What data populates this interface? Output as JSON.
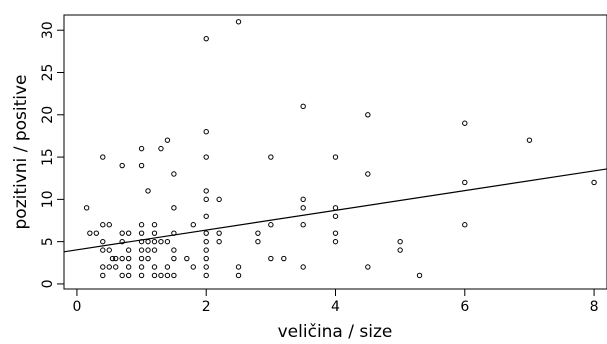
{
  "chart_data": {
    "type": "scatter",
    "title": "",
    "xlabel": "veličina / size",
    "ylabel": "pozitivni / positive",
    "xlim": [
      -0.2,
      8.2
    ],
    "ylim": [
      -0.6,
      31.8
    ],
    "xticks": [
      0,
      2,
      4,
      6,
      8
    ],
    "yticks": [
      0,
      5,
      10,
      15,
      20,
      25,
      30
    ],
    "grid": false,
    "legend": "none",
    "points": [
      {
        "x": 0.15,
        "y": 9
      },
      {
        "x": 0.2,
        "y": 6
      },
      {
        "x": 0.3,
        "y": 6
      },
      {
        "x": 0.4,
        "y": 15
      },
      {
        "x": 0.4,
        "y": 7
      },
      {
        "x": 0.4,
        "y": 5
      },
      {
        "x": 0.4,
        "y": 4
      },
      {
        "x": 0.4,
        "y": 2
      },
      {
        "x": 0.4,
        "y": 1
      },
      {
        "x": 0.5,
        "y": 7
      },
      {
        "x": 0.5,
        "y": 4
      },
      {
        "x": 0.5,
        "y": 2
      },
      {
        "x": 0.55,
        "y": 3
      },
      {
        "x": 0.6,
        "y": 3
      },
      {
        "x": 0.6,
        "y": 2
      },
      {
        "x": 0.7,
        "y": 14
      },
      {
        "x": 0.7,
        "y": 6
      },
      {
        "x": 0.7,
        "y": 5
      },
      {
        "x": 0.7,
        "y": 3
      },
      {
        "x": 0.7,
        "y": 1
      },
      {
        "x": 0.8,
        "y": 6
      },
      {
        "x": 0.8,
        "y": 4
      },
      {
        "x": 0.8,
        "y": 3
      },
      {
        "x": 0.8,
        "y": 2
      },
      {
        "x": 0.8,
        "y": 1
      },
      {
        "x": 1.0,
        "y": 16
      },
      {
        "x": 1.0,
        "y": 14
      },
      {
        "x": 1.0,
        "y": 7
      },
      {
        "x": 1.0,
        "y": 6
      },
      {
        "x": 1.0,
        "y": 5
      },
      {
        "x": 1.0,
        "y": 4
      },
      {
        "x": 1.0,
        "y": 3
      },
      {
        "x": 1.0,
        "y": 2
      },
      {
        "x": 1.0,
        "y": 1
      },
      {
        "x": 1.1,
        "y": 11
      },
      {
        "x": 1.1,
        "y": 5
      },
      {
        "x": 1.1,
        "y": 4
      },
      {
        "x": 1.1,
        "y": 3
      },
      {
        "x": 1.2,
        "y": 7
      },
      {
        "x": 1.2,
        "y": 6
      },
      {
        "x": 1.2,
        "y": 5
      },
      {
        "x": 1.2,
        "y": 4
      },
      {
        "x": 1.2,
        "y": 2
      },
      {
        "x": 1.2,
        "y": 1
      },
      {
        "x": 1.3,
        "y": 16
      },
      {
        "x": 1.3,
        "y": 5
      },
      {
        "x": 1.3,
        "y": 1
      },
      {
        "x": 1.4,
        "y": 17
      },
      {
        "x": 1.4,
        "y": 5
      },
      {
        "x": 1.4,
        "y": 2
      },
      {
        "x": 1.4,
        "y": 1
      },
      {
        "x": 1.5,
        "y": 13
      },
      {
        "x": 1.5,
        "y": 9
      },
      {
        "x": 1.5,
        "y": 6
      },
      {
        "x": 1.5,
        "y": 4
      },
      {
        "x": 1.5,
        "y": 3
      },
      {
        "x": 1.5,
        "y": 1
      },
      {
        "x": 1.7,
        "y": 3
      },
      {
        "x": 1.8,
        "y": 7
      },
      {
        "x": 1.8,
        "y": 2
      },
      {
        "x": 2.0,
        "y": 29
      },
      {
        "x": 2.0,
        "y": 18
      },
      {
        "x": 2.0,
        "y": 15
      },
      {
        "x": 2.0,
        "y": 11
      },
      {
        "x": 2.0,
        "y": 10
      },
      {
        "x": 2.0,
        "y": 8
      },
      {
        "x": 2.0,
        "y": 6
      },
      {
        "x": 2.0,
        "y": 5
      },
      {
        "x": 2.0,
        "y": 4
      },
      {
        "x": 2.0,
        "y": 3
      },
      {
        "x": 2.0,
        "y": 2
      },
      {
        "x": 2.0,
        "y": 1
      },
      {
        "x": 2.2,
        "y": 10
      },
      {
        "x": 2.2,
        "y": 6
      },
      {
        "x": 2.2,
        "y": 5
      },
      {
        "x": 2.5,
        "y": 31
      },
      {
        "x": 2.5,
        "y": 2
      },
      {
        "x": 2.5,
        "y": 1
      },
      {
        "x": 2.8,
        "y": 6
      },
      {
        "x": 2.8,
        "y": 5
      },
      {
        "x": 3.0,
        "y": 15
      },
      {
        "x": 3.0,
        "y": 7
      },
      {
        "x": 3.0,
        "y": 3
      },
      {
        "x": 3.2,
        "y": 3
      },
      {
        "x": 3.5,
        "y": 21
      },
      {
        "x": 3.5,
        "y": 10
      },
      {
        "x": 3.5,
        "y": 9
      },
      {
        "x": 3.5,
        "y": 7
      },
      {
        "x": 3.5,
        "y": 2
      },
      {
        "x": 4.0,
        "y": 15
      },
      {
        "x": 4.0,
        "y": 9
      },
      {
        "x": 4.0,
        "y": 8
      },
      {
        "x": 4.0,
        "y": 6
      },
      {
        "x": 4.0,
        "y": 5
      },
      {
        "x": 4.5,
        "y": 20
      },
      {
        "x": 4.5,
        "y": 13
      },
      {
        "x": 4.5,
        "y": 2
      },
      {
        "x": 5.0,
        "y": 5
      },
      {
        "x": 5.0,
        "y": 4
      },
      {
        "x": 5.3,
        "y": 1
      },
      {
        "x": 6.0,
        "y": 19
      },
      {
        "x": 6.0,
        "y": 12
      },
      {
        "x": 6.0,
        "y": 7
      },
      {
        "x": 7.0,
        "y": 17
      },
      {
        "x": 8.0,
        "y": 12
      }
    ],
    "fit_line": {
      "x": [
        -0.2,
        8.2
      ],
      "y": [
        3.8,
        13.6
      ]
    }
  }
}
